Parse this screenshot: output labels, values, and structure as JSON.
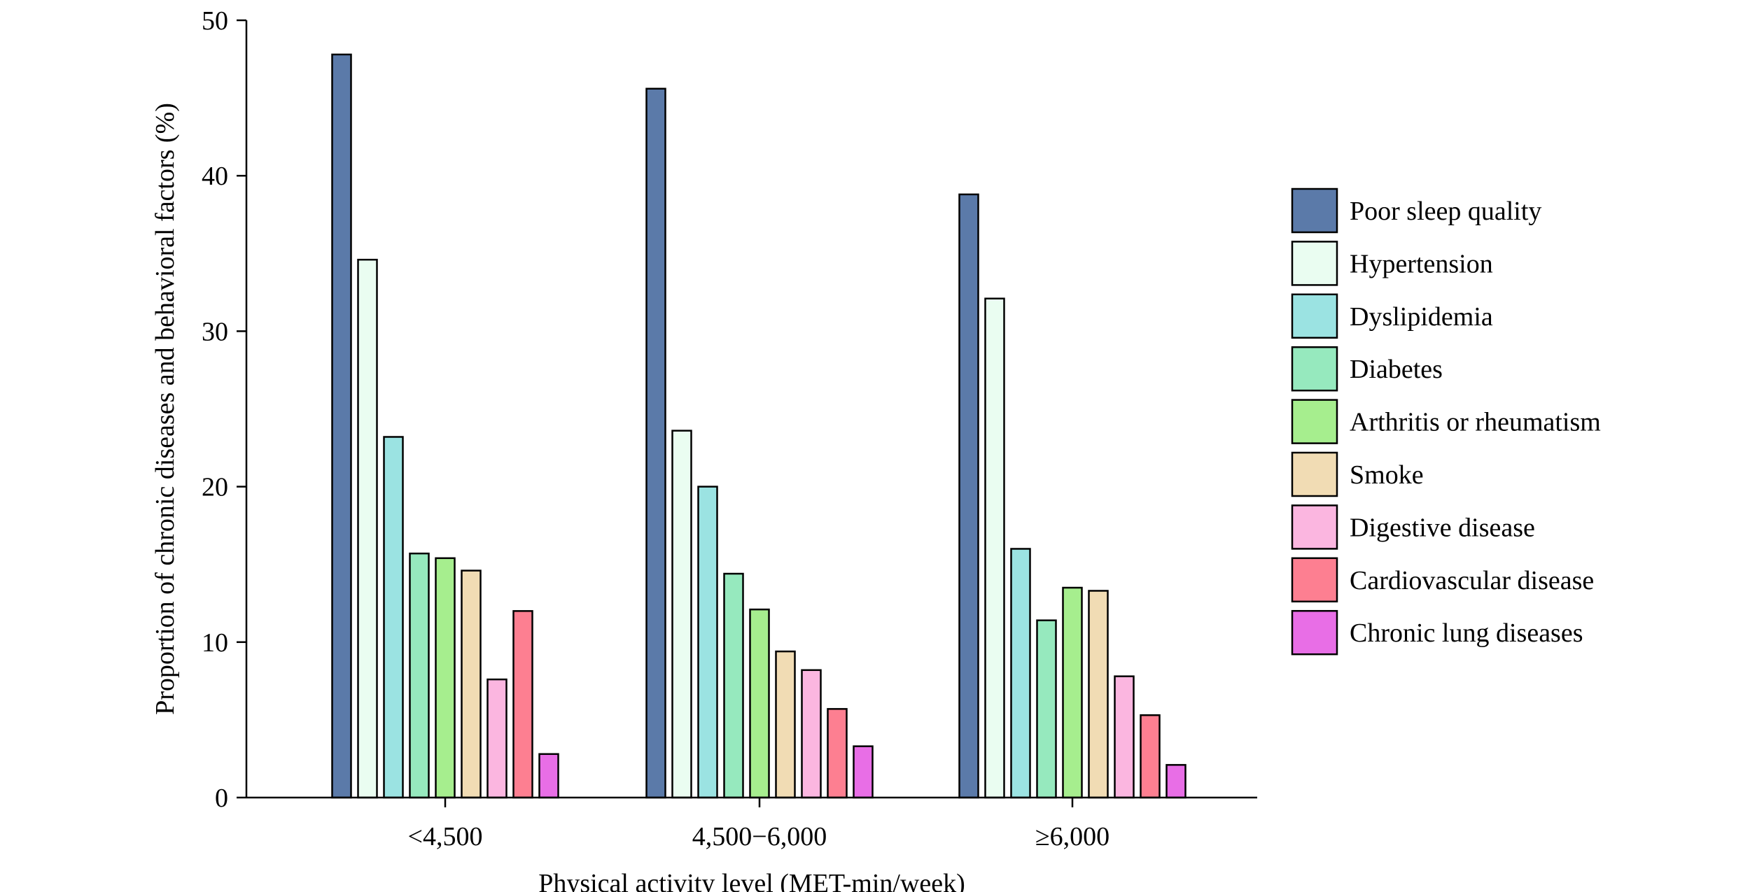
{
  "chart_data": {
    "type": "bar",
    "title": "",
    "xlabel": "Physical activity level (MET-min/week)",
    "ylabel": "Proportion of chronic diseases and behavioral factors (%)",
    "ylim": [
      0,
      50
    ],
    "yticks": [
      0,
      10,
      20,
      30,
      40,
      50
    ],
    "grid": false,
    "legend_position": "right",
    "categories": [
      "<4,500",
      "4,500−6,000",
      "≥6,000"
    ],
    "series": [
      {
        "name": "Poor sleep quality",
        "color": "#5b7aa9",
        "values": [
          47.8,
          45.6,
          38.8
        ]
      },
      {
        "name": "Hypertension",
        "color": "#eafdf1",
        "values": [
          34.6,
          23.6,
          32.1
        ]
      },
      {
        "name": "Dyslipidemia",
        "color": "#9be3e2",
        "values": [
          23.2,
          20.0,
          16.0
        ]
      },
      {
        "name": "Diabetes",
        "color": "#96e9be",
        "values": [
          15.7,
          14.4,
          11.4
        ]
      },
      {
        "name": "Arthritis or rheumatism",
        "color": "#a6ee8e",
        "values": [
          15.4,
          12.1,
          13.5
        ]
      },
      {
        "name": "Smoke",
        "color": "#f1dcb4",
        "values": [
          14.6,
          9.4,
          13.3
        ]
      },
      {
        "name": "Digestive disease",
        "color": "#fbb6e0",
        "values": [
          7.6,
          8.2,
          7.8
        ]
      },
      {
        "name": "Cardiovascular disease",
        "color": "#fd7f91",
        "values": [
          12.0,
          5.7,
          5.3
        ]
      },
      {
        "name": "Chronic lung diseases",
        "color": "#e86ee6",
        "values": [
          2.8,
          3.3,
          2.1
        ]
      }
    ]
  }
}
